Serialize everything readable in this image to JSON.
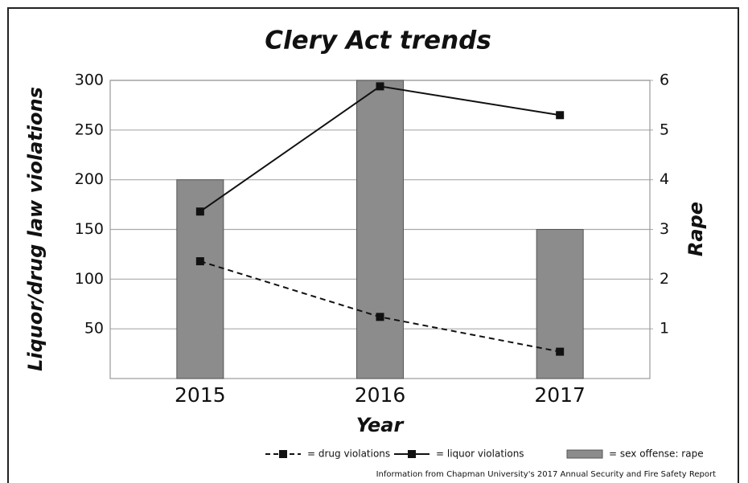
{
  "chart_data": {
    "type": "combo",
    "title": "Clery Act trends",
    "x_label": "Year",
    "y_label": "Liquor/drug law violations",
    "y2_label": "Rape",
    "categories": [
      "2015",
      "2016",
      "2017"
    ],
    "series": [
      {
        "name": "= sex offense: rape",
        "type": "bar",
        "axis": "y2",
        "color": "#8c8c8c",
        "values": [
          4,
          6,
          3
        ]
      },
      {
        "name": "= drug violations",
        "type": "line",
        "dashed": true,
        "color": "#111111",
        "values": [
          118,
          62,
          27
        ]
      },
      {
        "name": "= liquor violations",
        "type": "line",
        "dashed": false,
        "color": "#111111",
        "values": [
          168,
          294,
          265
        ]
      }
    ],
    "ylim": [
      0,
      300
    ],
    "yticks": [
      50,
      100,
      150,
      200,
      250,
      300
    ],
    "y2lim": [
      0,
      6
    ],
    "y2ticks": [
      1,
      2,
      3,
      4,
      5,
      6
    ],
    "grid": true,
    "note": "Information from Chapman University's 2017 Annual Security and Fire Safety Report"
  }
}
